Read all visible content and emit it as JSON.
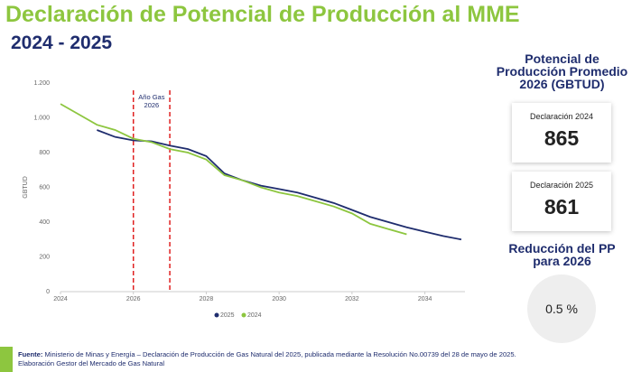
{
  "header": {
    "title": "Declaración de Potencial de Producción al MME",
    "subtitle": "2024 - 2025"
  },
  "chart_data": {
    "type": "line",
    "y_label": "GBTUD",
    "x": [
      2024,
      2024.5,
      2025,
      2025.5,
      2026,
      2026.5,
      2027,
      2027.5,
      2028,
      2028.5,
      2029,
      2029.5,
      2030,
      2030.5,
      2031,
      2031.5,
      2032,
      2032.5,
      2033,
      2033.5,
      2034,
      2034.5,
      2035
    ],
    "series": [
      {
        "name": "2025",
        "color": "#1f2d6e",
        "values": [
          null,
          null,
          930,
          890,
          870,
          865,
          840,
          820,
          780,
          680,
          640,
          610,
          590,
          570,
          540,
          510,
          470,
          430,
          400,
          370,
          345,
          320,
          300
        ]
      },
      {
        "name": "2024",
        "color": "#8dc63f",
        "values": [
          1080,
          1020,
          960,
          930,
          880,
          860,
          820,
          800,
          760,
          670,
          640,
          600,
          570,
          550,
          520,
          490,
          450,
          390,
          360,
          330,
          null,
          null,
          null
        ]
      }
    ],
    "xlim": [
      2024,
      2035.1
    ],
    "xticks": [
      2024,
      2026,
      2028,
      2030,
      2032,
      2034
    ],
    "ylim": [
      0,
      1200
    ],
    "yticks": [
      0,
      200,
      400,
      600,
      800,
      {
        "value": 1000,
        "label": "1.000"
      },
      {
        "value": 1200,
        "label": "1.200"
      }
    ],
    "grid": false,
    "legend": "bottom",
    "vlines": [
      2026,
      2027
    ],
    "vline_color": "#e02020",
    "annotation": [
      "Año Gas",
      "2026"
    ]
  },
  "panel": {
    "heading": [
      "Potencial de",
      "Producción Promedio",
      "2026 (GBTUD)"
    ],
    "cards": [
      {
        "label": "Declaración 2024",
        "value": 865
      },
      {
        "label": "Declaración 2025",
        "value": 861
      }
    ],
    "reduction_heading": [
      "Reducción del PP",
      "para 2026"
    ],
    "reduction_value": "0.5 %"
  },
  "footer": {
    "source_label": "Fuente:",
    "source": "Ministerio de Minas y Energía – Declaración de Producción de Gas Natural del 2025, publicada mediante la Resolución No.00739 del 28 de mayo de 2025.",
    "line2": "Elaboración Gestor del Mercado de Gas Natural"
  }
}
